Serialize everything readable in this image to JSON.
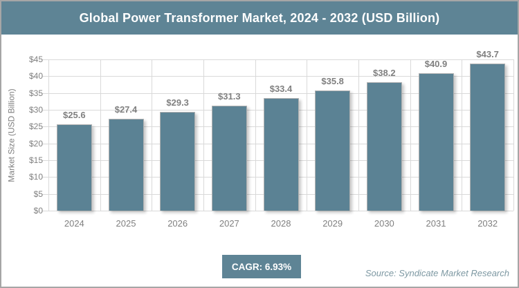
{
  "title": "Global Power Transformer Market, 2024 - 2032 (USD Billion)",
  "footer": {
    "cagr_label": "CAGR: 6.93%",
    "source": "Source: Syndicate Market Research"
  },
  "colors": {
    "accent": "#5E8495",
    "bar": "#5B8294",
    "gridline": "#D9D9D9",
    "text_gray": "#7F7F7F",
    "source_text": "#7D98A2",
    "frame_border": "#A6A6A6"
  },
  "chart_data": {
    "type": "bar",
    "title": "Global Power Transformer Market, 2024 - 2032 (USD Billion)",
    "categories": [
      "2024",
      "2025",
      "2026",
      "2027",
      "2028",
      "2029",
      "2030",
      "2031",
      "2032"
    ],
    "values": [
      25.6,
      27.4,
      29.3,
      31.3,
      33.4,
      35.8,
      38.2,
      40.9,
      43.7
    ],
    "bar_labels": [
      "$25.6",
      "$27.4",
      "$29.3",
      "$31.3",
      "$33.4",
      "$35.8",
      "$38.2",
      "$40.9",
      "$43.7"
    ],
    "xlabel": "",
    "ylabel": "Market Size (USD Billion)",
    "ylim": [
      0,
      45
    ],
    "ytick_step": 5,
    "ytick_labels": [
      "$0",
      "$5",
      "$10",
      "$15",
      "$20",
      "$25",
      "$30",
      "$35",
      "$40",
      "$45"
    ],
    "grid": true,
    "legend": false,
    "annotations": [
      "CAGR: 6.93%",
      "Source: Syndicate Market Research"
    ]
  }
}
